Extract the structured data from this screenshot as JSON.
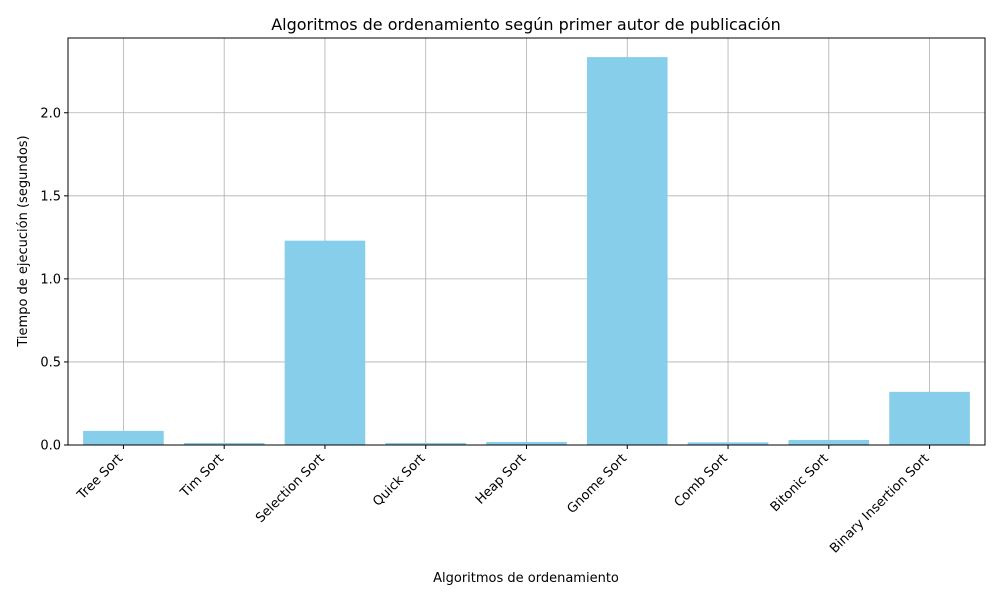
{
  "chart_data": {
    "type": "bar",
    "title": "Algoritmos de ordenamiento según primer autor de publicación",
    "xlabel": "Algoritmos de ordenamiento",
    "ylabel": "Tiempo de ejecución (segundos)",
    "categories": [
      "Tree Sort",
      "Tim Sort",
      "Selection Sort",
      "Quick Sort",
      "Heap Sort",
      "Gnome Sort",
      "Comb Sort",
      "Bitonic Sort",
      "Binary Insertion Sort"
    ],
    "values": [
      0.085,
      0.012,
      1.23,
      0.012,
      0.018,
      2.335,
      0.016,
      0.03,
      0.32
    ],
    "ylim": [
      0,
      2.45
    ],
    "yticks": [
      "0.0",
      "0.5",
      "1.0",
      "1.5",
      "2.0"
    ],
    "grid": true,
    "bar_color": "#87ceeb"
  }
}
